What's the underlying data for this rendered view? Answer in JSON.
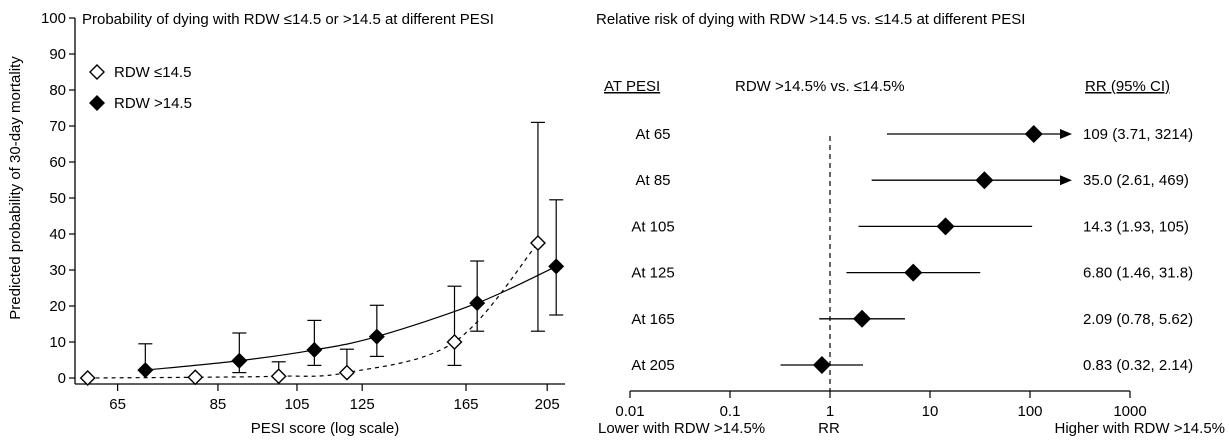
{
  "chart_data": [
    {
      "type": "scatter",
      "title": "Probability of dying with RDW ≤14.5 or >14.5 at different PESI",
      "xlabel": "PESI score (log scale)",
      "ylabel": "Predicted probability of 30-day mortality",
      "x_scale": "log",
      "xlim": [
        58,
        215
      ],
      "ylim": [
        0,
        100
      ],
      "xticks": [
        65,
        85,
        105,
        125,
        165,
        205
      ],
      "yticks": [
        0,
        10,
        20,
        30,
        40,
        50,
        60,
        70,
        80,
        90,
        100
      ],
      "legend": "top-left",
      "series": [
        {
          "name": "RDW ≤14.5",
          "marker": "open-diamond",
          "line": "dashed",
          "x": [
            65,
            85,
            105,
            125,
            165,
            205
          ],
          "y": [
            0,
            0.2,
            0.5,
            1.5,
            10,
            37.5
          ],
          "err_low": [
            null,
            null,
            null,
            null,
            3.5,
            13
          ],
          "err_high": [
            null,
            null,
            4.5,
            8,
            25.5,
            71
          ]
        },
        {
          "name": "RDW >14.5",
          "marker": "filled-diamond",
          "line": "solid",
          "x": [
            65,
            85,
            105,
            125,
            165,
            205
          ],
          "y": [
            2.2,
            4.8,
            7.8,
            11.5,
            20.8,
            31
          ],
          "err_low": [
            null,
            1.5,
            3.5,
            6,
            13,
            17.5
          ],
          "err_high": [
            9.5,
            12.5,
            16,
            20.2,
            32.5,
            49.5
          ]
        }
      ]
    },
    {
      "type": "forest",
      "title": "Relative risk of dying with RDW  >14.5 vs. ≤14.5 at different PESI",
      "x_scale": "log",
      "xlim": [
        0.01,
        1000
      ],
      "xticks": [
        "0.01",
        "0.1",
        "1",
        "10",
        "100",
        "1000"
      ],
      "reference_line": 1,
      "xlabel_center": "RR",
      "xlabel_left": "Lower with RDW >14.5%",
      "xlabel_right": "Higher with RDW >14.5%",
      "header_left": "AT PESI",
      "header_middle": "RDW >14.5% vs. ≤14.5%",
      "header_right": "RR (95% CI)",
      "rows": [
        {
          "label": "At 65",
          "rr": 109,
          "lo": 3.71,
          "hi": 3214,
          "text": "109 (3.71, 3214)"
        },
        {
          "label": "At 85",
          "rr": 35.0,
          "lo": 2.61,
          "hi": 469,
          "text": "35.0 (2.61, 469)"
        },
        {
          "label": "At 105",
          "rr": 14.3,
          "lo": 1.93,
          "hi": 105,
          "text": "14.3 (1.93, 105)"
        },
        {
          "label": "At 125",
          "rr": 6.8,
          "lo": 1.46,
          "hi": 31.8,
          "text": "6.80 (1.46, 31.8)"
        },
        {
          "label": "At 165",
          "rr": 2.09,
          "lo": 0.78,
          "hi": 5.62,
          "text": "2.09 (0.78, 5.62)"
        },
        {
          "label": "At 205",
          "rr": 0.83,
          "lo": 0.32,
          "hi": 2.14,
          "text": "0.83 (0.32, 2.14)"
        }
      ]
    }
  ]
}
